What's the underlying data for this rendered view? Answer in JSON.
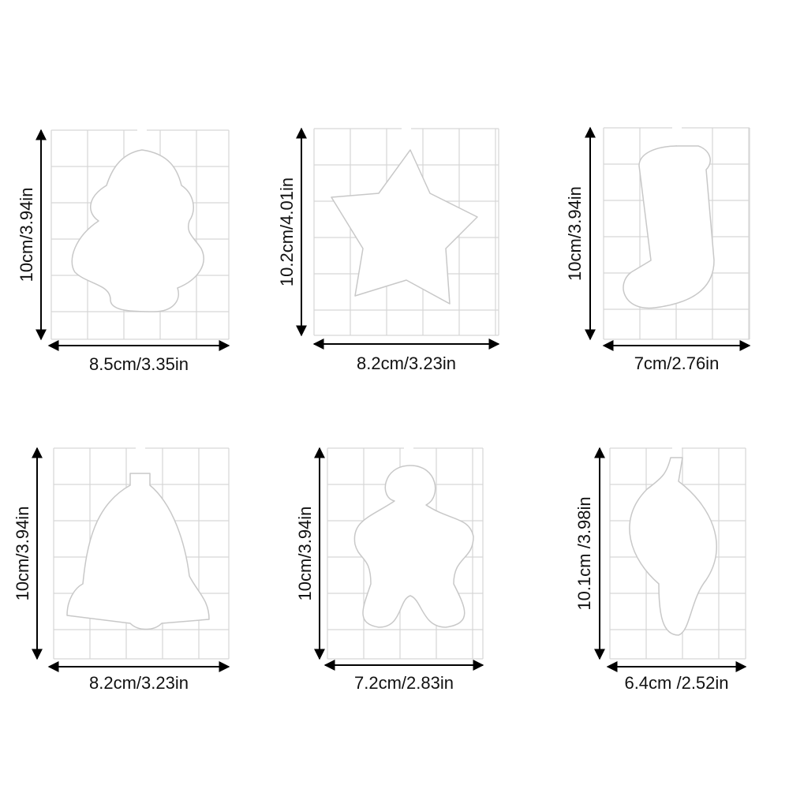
{
  "items": [
    {
      "height": "10cm/3.94in",
      "width": "8.5cm/3.35in"
    },
    {
      "height": "10.2cm/4.01in",
      "width": "8.2cm/3.23in"
    },
    {
      "height": "10cm/3.94in",
      "width": "7cm/2.76in"
    },
    {
      "height": "10cm/3.94in",
      "width": "8.2cm/3.23in"
    },
    {
      "height": "10cm/3.94in",
      "width": "7.2cm/2.83in"
    },
    {
      "height": "10.1cm /3.98in",
      "width": "6.4cm /2.52in"
    }
  ]
}
